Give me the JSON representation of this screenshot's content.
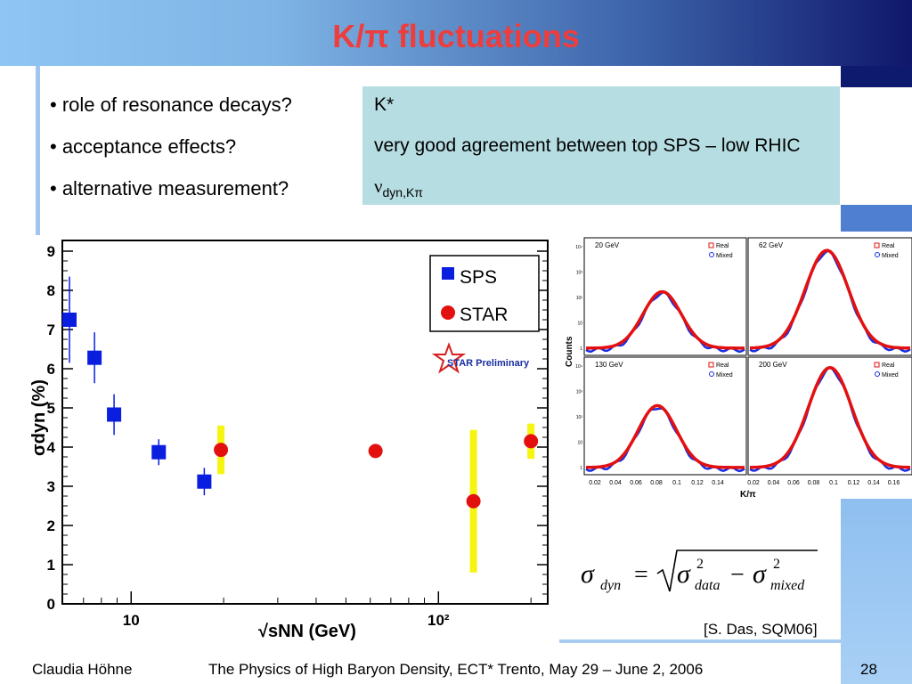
{
  "slide": {
    "title": "K/π fluctuations",
    "bullets": [
      "• role of resonance decays?",
      "• acceptance effects?",
      "• alternative measurement?"
    ],
    "infobox": {
      "line1": "K*",
      "line2": "very good agreement between top SPS – low RHIC",
      "nu": "ν",
      "nu_sub": "dyn,Kπ"
    },
    "citation": "[S. Das, SQM06]",
    "footer": {
      "author": "Claudia Höhne",
      "event": "The Physics of High Baryon Density, ECT* Trento, May 29 – June 2, 2006",
      "page": "28"
    },
    "colors": {
      "title": "#ee3d3d",
      "infobox_bg": "#b6dde2",
      "sps": "#0a1ee0",
      "star": "#e31010",
      "syst": "#f5f511"
    }
  },
  "chart_data": [
    {
      "type": "scatter",
      "ylabel": "σdyn (%)",
      "xlabel": "√sNN (GeV)",
      "xscale": "log",
      "xlim": [
        6.3,
        215
      ],
      "ylim": [
        0,
        9
      ],
      "yticks": [
        "0",
        "1",
        "2",
        "3",
        "4",
        "5",
        "6",
        "7",
        "8",
        "9"
      ],
      "xticks": [
        "10",
        "10²"
      ],
      "watermark": "STAR Preliminary",
      "series": [
        {
          "name": "SPS",
          "marker": "square",
          "color": "#0a1ee0",
          "x": [
            6.3,
            7.6,
            8.8,
            12.3,
            17.3
          ],
          "y": [
            7.25,
            6.28,
            4.83,
            3.87,
            3.12
          ],
          "yerr": [
            1.1,
            0.65,
            0.52,
            0.33,
            0.35
          ]
        },
        {
          "name": "STAR",
          "marker": "circle",
          "color": "#e31010",
          "x": [
            19.6,
            62.4,
            130,
            200
          ],
          "y": [
            3.93,
            3.9,
            2.62,
            4.15
          ],
          "syst": [
            0.62,
            0,
            1.82,
            0.45
          ]
        }
      ]
    },
    {
      "type": "scatter",
      "xlabel": "K/π",
      "ylabel": "Counts",
      "panels": [
        {
          "label": "20 GeV",
          "legend": [
            "Real",
            "Mixed"
          ]
        },
        {
          "label": "62 GeV",
          "legend": [
            "Real",
            "Mixed"
          ]
        },
        {
          "label": "130 GeV",
          "legend": [
            "Real",
            "Mixed"
          ]
        },
        {
          "label": "200 GeV",
          "legend": [
            "Real",
            "Mixed"
          ]
        }
      ],
      "xticks_left": [
        "0.02",
        "0.04",
        "0.06",
        "0.08",
        "0.1",
        "0.12",
        "0.14"
      ],
      "xticks_right": [
        "0.02",
        "0.04",
        "0.06",
        "0.08",
        "0.1",
        "0.12",
        "0.14",
        "0.16"
      ],
      "yticks": [
        "1",
        "10",
        "10²",
        "10³",
        "10⁴"
      ]
    }
  ],
  "formula": {
    "lhs": "σ",
    "lhs_sub": "dyn",
    "eq": "=",
    "t1": "σ",
    "t1_sup": "2",
    "t1_sub": "data",
    "minus": "−",
    "t2": "σ",
    "t2_sup": "2",
    "t2_sub": "mixed"
  }
}
